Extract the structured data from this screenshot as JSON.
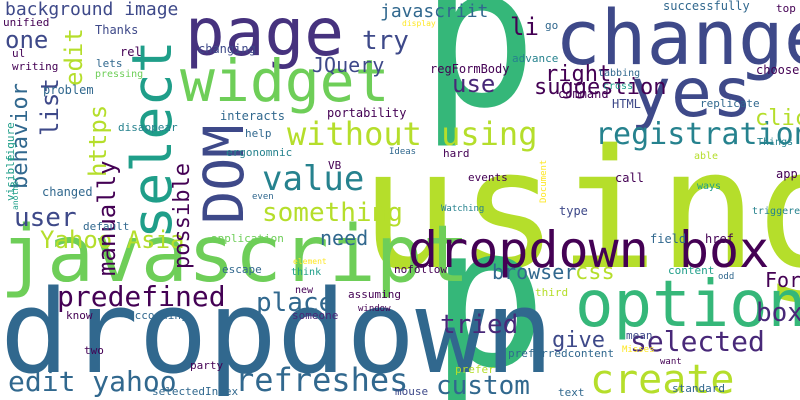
{
  "word_cloud": {
    "words": [
      {
        "text": "using",
        "color": "#b5de2b"
      },
      {
        "text": "p",
        "color": "#35b779"
      },
      {
        "text": "p",
        "color": "#35b779"
      },
      {
        "text": "dropdown",
        "color": "#31688e"
      },
      {
        "text": "javascript",
        "color": "#6ece58"
      },
      {
        "text": "change",
        "color": "#3e4989"
      },
      {
        "text": "page",
        "color": "#46327e"
      },
      {
        "text": "select",
        "color": "#1f9e89"
      },
      {
        "text": "widget",
        "color": "#6ece58"
      },
      {
        "text": "yes",
        "color": "#3e4989"
      },
      {
        "text": "option",
        "color": "#35b779"
      },
      {
        "text": "DOM",
        "color": "#3e4989"
      },
      {
        "text": "dropdown box",
        "color": "#440154"
      },
      {
        "text": "create",
        "color": "#b5de2b"
      },
      {
        "text": "without using",
        "color": "#b5de2b"
      },
      {
        "text": "value",
        "color": "#26828e"
      },
      {
        "text": "registration",
        "color": "#26828e"
      },
      {
        "text": "refreshes",
        "color": "#31688e"
      },
      {
        "text": "predefined",
        "color": "#440154"
      },
      {
        "text": "selected",
        "color": "#482878"
      },
      {
        "text": "edit yahoo",
        "color": "#31688e"
      },
      {
        "text": "something",
        "color": "#b5de2b"
      },
      {
        "text": "Yahoo Asia",
        "color": "#b5de2b"
      },
      {
        "text": "suggestion",
        "color": "#440154"
      },
      {
        "text": "user",
        "color": "#3e4989"
      },
      {
        "text": "behavior",
        "color": "#31688e"
      },
      {
        "text": "list",
        "color": "#3e4989"
      },
      {
        "text": "https",
        "color": "#b5de2b"
      },
      {
        "text": "edit",
        "color": "#b5de2b"
      },
      {
        "text": "manually",
        "color": "#440154"
      },
      {
        "text": "possible",
        "color": "#440154"
      },
      {
        "text": "place",
        "color": "#31688e"
      },
      {
        "text": "tried",
        "color": "#482878"
      },
      {
        "text": "custom",
        "color": "#31688e"
      },
      {
        "text": "box",
        "color": "#482878"
      },
      {
        "text": "give",
        "color": "#3e4989"
      },
      {
        "text": "try",
        "color": "#3e4989"
      },
      {
        "text": "use",
        "color": "#482878"
      },
      {
        "text": "li",
        "color": "#440154"
      },
      {
        "text": "right",
        "color": "#440154"
      },
      {
        "text": "one",
        "color": "#3e4989"
      },
      {
        "text": "need",
        "color": "#31688e"
      },
      {
        "text": "browser",
        "color": "#31688e"
      },
      {
        "text": "css",
        "color": "#b5de2b"
      },
      {
        "text": "click",
        "color": "#b5de2b"
      },
      {
        "text": "JQuery",
        "color": "#3e4989"
      },
      {
        "text": "javascriit",
        "color": "#31688e"
      },
      {
        "text": "background image",
        "color": "#3e4989"
      },
      {
        "text": "Form",
        "color": "#440154"
      },
      {
        "text": "successfully",
        "color": "#31688e"
      },
      {
        "text": "regFormBody",
        "color": "#440154"
      },
      {
        "text": "HTML",
        "color": "#3e4989"
      },
      {
        "text": "command",
        "color": "#440154"
      },
      {
        "text": "choose",
        "color": "#440154"
      },
      {
        "text": "changing",
        "color": "#3e4989"
      },
      {
        "text": "writing",
        "color": "#440154"
      },
      {
        "text": "Thanks",
        "color": "#3e4989"
      },
      {
        "text": "unified",
        "color": "#440154"
      },
      {
        "text": "rel",
        "color": "#440154"
      },
      {
        "text": "lets",
        "color": "#31688e"
      },
      {
        "text": "problem",
        "color": "#31688e"
      },
      {
        "text": "pressing",
        "color": "#6ece58"
      },
      {
        "text": "figure",
        "color": "#1f9e89"
      },
      {
        "text": "visible",
        "color": "#1f9e89"
      },
      {
        "text": "ul",
        "color": "#440154"
      },
      {
        "text": "disappear",
        "color": "#26828e"
      },
      {
        "text": "interacts",
        "color": "#31688e"
      },
      {
        "text": "portability",
        "color": "#440154"
      },
      {
        "text": "ergonomnic",
        "color": "#26828e"
      },
      {
        "text": "help",
        "color": "#31688e"
      },
      {
        "text": "Ideas",
        "color": "#31688e"
      },
      {
        "text": "hard",
        "color": "#440154"
      },
      {
        "text": "VB",
        "color": "#440154"
      },
      {
        "text": "events",
        "color": "#440154"
      },
      {
        "text": "call",
        "color": "#440154"
      },
      {
        "text": "Document",
        "color": "#fde725"
      },
      {
        "text": "Watching",
        "color": "#26828e"
      },
      {
        "text": "type",
        "color": "#3e4989"
      },
      {
        "text": "field",
        "color": "#31688e"
      },
      {
        "text": "href",
        "color": "#440154"
      },
      {
        "text": "content",
        "color": "#1f9e89"
      },
      {
        "text": "app",
        "color": "#440154"
      },
      {
        "text": "able",
        "color": "#b5de2b"
      },
      {
        "text": "ways",
        "color": "#1f9e89"
      },
      {
        "text": "Things",
        "color": "#26828e"
      },
      {
        "text": "triggered",
        "color": "#26828e"
      },
      {
        "text": "tabbing",
        "color": "#31688e"
      },
      {
        "text": "cross",
        "color": "#1f9e89"
      },
      {
        "text": "replicate",
        "color": "#31688e"
      },
      {
        "text": "advance",
        "color": "#26828e"
      },
      {
        "text": "go",
        "color": "#31688e"
      },
      {
        "text": "display",
        "color": "#fde725"
      },
      {
        "text": "top",
        "color": "#440154"
      },
      {
        "text": "changed",
        "color": "#31688e"
      },
      {
        "text": "default",
        "color": "#31688e"
      },
      {
        "text": "another",
        "color": "#1f9e89"
      },
      {
        "text": "application",
        "color": "#6ece58"
      },
      {
        "text": "even",
        "color": "#31688e"
      },
      {
        "text": "escape",
        "color": "#31688e"
      },
      {
        "text": "think",
        "color": "#1f9e89"
      },
      {
        "text": "element",
        "color": "#fde725"
      },
      {
        "text": "nofollow",
        "color": "#440154"
      },
      {
        "text": "new",
        "color": "#440154"
      },
      {
        "text": "assuming",
        "color": "#440154"
      },
      {
        "text": "window",
        "color": "#440154"
      },
      {
        "text": "someone",
        "color": "#482878"
      },
      {
        "text": "according",
        "color": "#31688e"
      },
      {
        "text": "know",
        "color": "#440154"
      },
      {
        "text": "two",
        "color": "#440154"
      },
      {
        "text": "party",
        "color": "#440154"
      },
      {
        "text": "selectedIndex",
        "color": "#31688e"
      },
      {
        "text": "mouse",
        "color": "#3e4989"
      },
      {
        "text": "third",
        "color": "#b5de2b"
      },
      {
        "text": "prefer",
        "color": "#b5de2b"
      },
      {
        "text": "mean",
        "color": "#3e4989"
      },
      {
        "text": "preferredcontent",
        "color": "#31688e"
      },
      {
        "text": "Misses",
        "color": "#fde725"
      },
      {
        "text": "want",
        "color": "#440154"
      },
      {
        "text": "odd",
        "color": "#31688e"
      },
      {
        "text": "standard",
        "color": "#31688e"
      },
      {
        "text": "text",
        "color": "#31688e"
      }
    ]
  }
}
